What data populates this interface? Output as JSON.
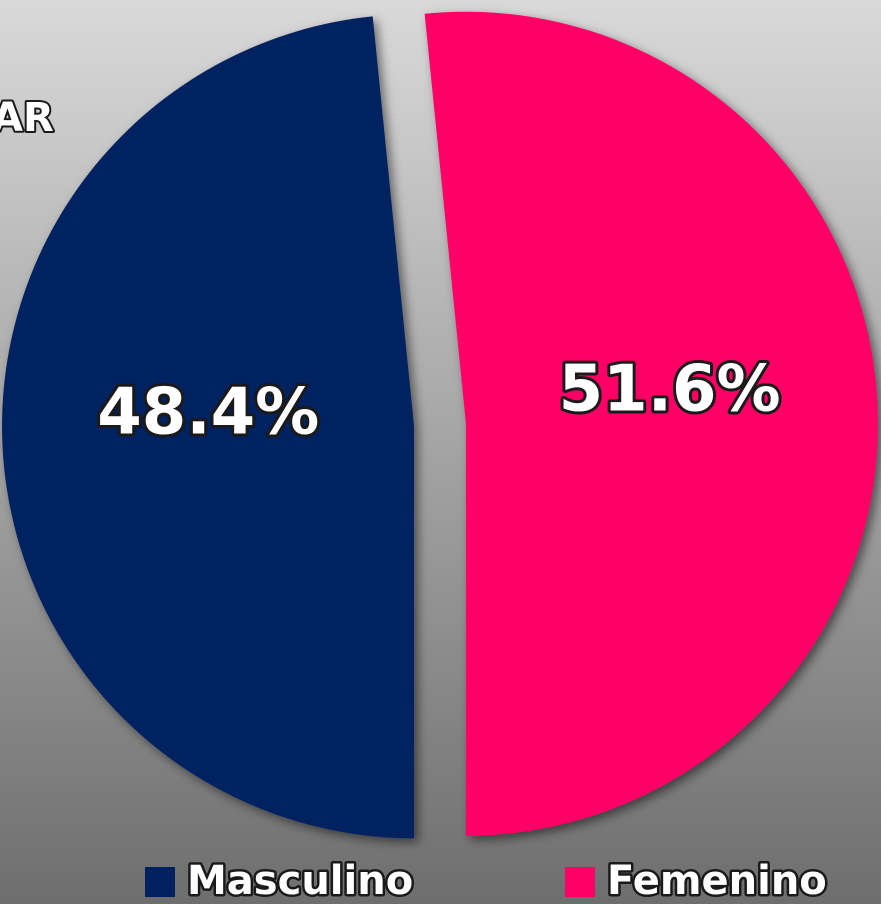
{
  "chart_data": {
    "type": "pie",
    "title": "AR",
    "categories": [
      "Masculino",
      "Femenino"
    ],
    "values": [
      48.4,
      51.6
    ],
    "value_labels": [
      "48.4%",
      "51.6%"
    ],
    "colors": [
      "#002060",
      "#ff0066"
    ],
    "start_angle": 180,
    "exploded": true,
    "legend": "bottom"
  }
}
